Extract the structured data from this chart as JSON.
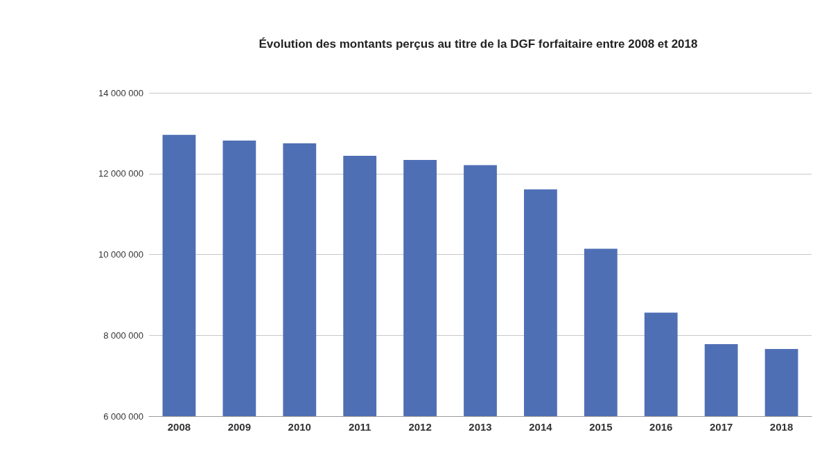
{
  "chart_data": {
    "type": "bar",
    "title": "Évolution des montants perçus au titre de la DGF forfaitaire entre 2008 et 2018",
    "categories": [
      "2008",
      "2009",
      "2010",
      "2011",
      "2012",
      "2013",
      "2014",
      "2015",
      "2016",
      "2017",
      "2018"
    ],
    "values": [
      12960000,
      12820000,
      12750000,
      12440000,
      12340000,
      12210000,
      11610000,
      10140000,
      8560000,
      7780000,
      7660000
    ],
    "color": "#4f6fb5",
    "ylim": [
      6000000,
      14000000
    ],
    "yticks": [
      {
        "value": 6000000,
        "label": "6 000 000"
      },
      {
        "value": 8000000,
        "label": "8 000 000"
      },
      {
        "value": 10000000,
        "label": "10 000 000"
      },
      {
        "value": 12000000,
        "label": "12 000 000"
      },
      {
        "value": 14000000,
        "label": "14 000 000"
      }
    ],
    "grid": "y"
  }
}
